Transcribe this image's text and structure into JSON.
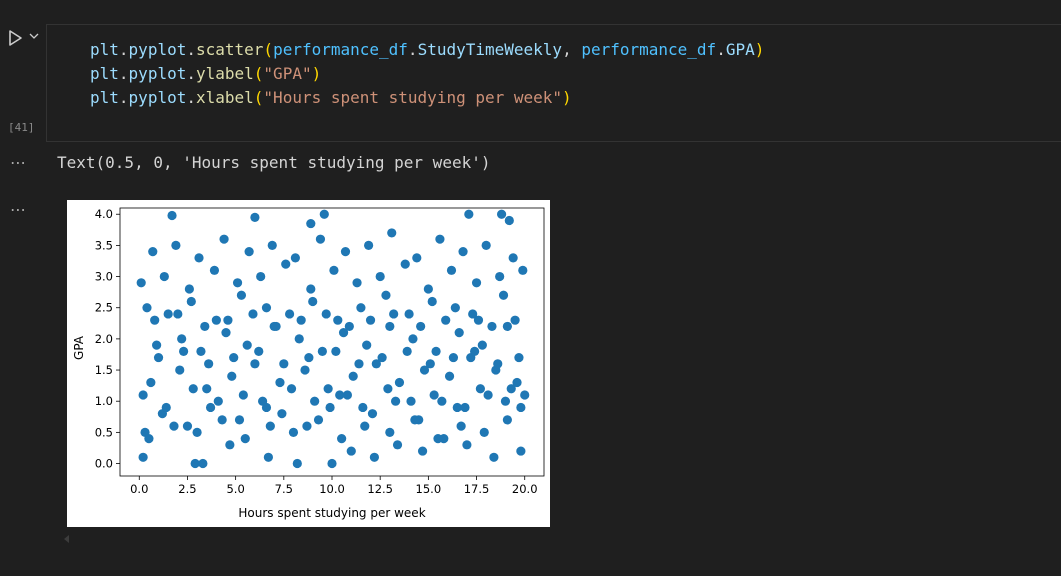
{
  "cell": {
    "execution_count": "[41]",
    "code_lines": [
      [
        {
          "t": "plt",
          "c": "id"
        },
        {
          "t": ".",
          "c": "dot"
        },
        {
          "t": "pyplot",
          "c": "id"
        },
        {
          "t": ".",
          "c": "dot"
        },
        {
          "t": "scatter",
          "c": "fn"
        },
        {
          "t": "(",
          "c": "p1"
        },
        {
          "t": "performance_df",
          "c": "var"
        },
        {
          "t": ".",
          "c": "dot"
        },
        {
          "t": "StudyTimeWeekly",
          "c": "id"
        },
        {
          "t": ", ",
          "c": "dot"
        },
        {
          "t": "performance_df",
          "c": "var"
        },
        {
          "t": ".",
          "c": "dot"
        },
        {
          "t": "GPA",
          "c": "id"
        },
        {
          "t": ")",
          "c": "p1"
        }
      ],
      [
        {
          "t": "plt",
          "c": "id"
        },
        {
          "t": ".",
          "c": "dot"
        },
        {
          "t": "pyplot",
          "c": "id"
        },
        {
          "t": ".",
          "c": "dot"
        },
        {
          "t": "ylabel",
          "c": "fn"
        },
        {
          "t": "(",
          "c": "p1"
        },
        {
          "t": "\"GPA\"",
          "c": "str"
        },
        {
          "t": ")",
          "c": "p1"
        }
      ],
      [
        {
          "t": "plt",
          "c": "id"
        },
        {
          "t": ".",
          "c": "dot"
        },
        {
          "t": "pyplot",
          "c": "id"
        },
        {
          "t": ".",
          "c": "dot"
        },
        {
          "t": "xlabel",
          "c": "fn"
        },
        {
          "t": "(",
          "c": "p1"
        },
        {
          "t": "\"Hours spent studying per week\"",
          "c": "str"
        },
        {
          "t": ")",
          "c": "p1"
        }
      ]
    ]
  },
  "output": {
    "text": "Text(0.5, 0, 'Hours spent studying per week')",
    "dots": "⋯"
  },
  "chart_data": {
    "type": "scatter",
    "xlabel": "Hours spent studying per week",
    "ylabel": "GPA",
    "xlim": [
      -1,
      21
    ],
    "ylim": [
      -0.2,
      4.1
    ],
    "xticks": [
      "0.0",
      "2.5",
      "5.0",
      "7.5",
      "10.0",
      "12.5",
      "15.0",
      "17.5",
      "20.0"
    ],
    "yticks": [
      "0.0",
      "0.5",
      "1.0",
      "1.5",
      "2.0",
      "2.5",
      "3.0",
      "3.5",
      "4.0"
    ],
    "marker_color": "#1f77b4",
    "x": [
      1.7,
      6.0,
      9.6,
      8.9,
      17.1,
      18.8,
      19.2,
      19.8,
      2.9,
      0.2,
      3.3,
      4.7,
      6.7,
      8.2,
      10.0,
      11.0,
      12.2,
      13.4,
      14.7,
      15.8,
      17.0,
      18.4,
      19.8,
      0.3,
      1.2,
      2.5,
      3.7,
      5.2,
      6.4,
      7.4,
      8.7,
      9.9,
      10.8,
      12.1,
      13.3,
      14.5,
      15.7,
      16.9,
      18.1,
      19.3,
      0.6,
      2.1,
      3.5,
      4.8,
      6.0,
      7.3,
      8.6,
      9.8,
      11.1,
      12.3,
      13.5,
      14.8,
      16.1,
      17.2,
      18.5,
      19.6,
      0.9,
      2.2,
      3.2,
      4.5,
      5.6,
      7.0,
      8.3,
      9.5,
      10.6,
      11.8,
      13.0,
      14.2,
      15.4,
      16.6,
      17.8,
      19.1,
      0.4,
      1.5,
      2.7,
      4.0,
      5.3,
      6.6,
      7.8,
      9.0,
      10.3,
      11.5,
      12.8,
      14.0,
      15.2,
      16.4,
      17.6,
      18.9,
      0.1,
      1.3,
      2.6,
      3.9,
      5.1,
      6.3,
      7.6,
      8.9,
      10.1,
      11.3,
      12.5,
      13.8,
      15.0,
      16.2,
      17.5,
      18.7,
      19.9,
      0.7,
      1.9,
      3.1,
      4.4,
      5.7,
      6.9,
      8.1,
      9.4,
      10.7,
      11.9,
      13.1,
      14.4,
      15.6,
      16.8,
      18.0,
      19.4,
      0.5,
      1.8,
      3.0,
      4.3,
      5.5,
      6.8,
      8.0,
      9.3,
      10.5,
      11.7,
      13.0,
      14.3,
      15.5,
      16.7,
      17.9,
      19.1,
      0.2,
      1.4,
      2.8,
      4.1,
      5.4,
      6.6,
      7.9,
      9.1,
      10.4,
      11.6,
      12.9,
      14.1,
      15.3,
      16.5,
      17.7,
      19.0,
      20.0,
      1.0,
      2.3,
      3.6,
      4.9,
      6.2,
      7.5,
      8.8,
      10.2,
      11.4,
      12.6,
      13.9,
      15.1,
      16.3,
      17.4,
      18.6,
      19.7,
      0.8,
      2.0,
      3.4,
      4.6,
      5.9,
      7.1,
      8.4,
      9.7,
      10.9,
      12.0,
      13.2,
      14.6,
      15.9,
      17.3,
      18.3,
      19.5
    ],
    "y": [
      3.98,
      3.95,
      4.0,
      3.85,
      4.0,
      4.0,
      3.9,
      0.2,
      0.0,
      0.1,
      0.0,
      0.3,
      0.1,
      0.0,
      0.0,
      0.2,
      0.1,
      0.3,
      0.2,
      0.4,
      0.3,
      0.1,
      0.9,
      0.5,
      0.8,
      0.6,
      0.9,
      0.7,
      1.0,
      0.8,
      0.6,
      0.9,
      1.1,
      0.8,
      1.0,
      0.7,
      1.0,
      0.9,
      1.1,
      1.2,
      1.3,
      1.5,
      1.2,
      1.4,
      1.6,
      1.3,
      1.5,
      1.2,
      1.4,
      1.6,
      1.3,
      1.5,
      1.4,
      1.7,
      1.5,
      1.3,
      1.9,
      2.0,
      1.8,
      2.1,
      1.9,
      2.2,
      2.0,
      1.8,
      2.1,
      1.9,
      2.2,
      2.0,
      1.8,
      2.1,
      1.9,
      2.2,
      2.5,
      2.4,
      2.6,
      2.3,
      2.7,
      2.5,
      2.4,
      2.6,
      2.3,
      2.5,
      2.7,
      2.4,
      2.6,
      2.5,
      2.3,
      2.7,
      2.9,
      3.0,
      2.8,
      3.1,
      2.9,
      3.0,
      3.2,
      2.8,
      3.1,
      2.9,
      3.0,
      3.2,
      2.8,
      3.1,
      2.9,
      3.0,
      3.1,
      3.4,
      3.5,
      3.3,
      3.6,
      3.4,
      3.5,
      3.3,
      3.6,
      3.4,
      3.5,
      3.7,
      3.3,
      3.6,
      3.4,
      3.5,
      3.3,
      0.4,
      0.6,
      0.5,
      0.7,
      0.4,
      0.6,
      0.5,
      0.7,
      0.4,
      0.6,
      0.5,
      0.7,
      0.4,
      0.6,
      0.5,
      0.7,
      1.1,
      0.9,
      1.2,
      1.0,
      1.1,
      0.9,
      1.2,
      1.0,
      1.1,
      0.9,
      1.2,
      1.0,
      1.1,
      0.9,
      1.2,
      1.0,
      1.1,
      1.7,
      1.8,
      1.6,
      1.7,
      1.8,
      1.6,
      1.7,
      1.8,
      1.6,
      1.7,
      1.8,
      1.6,
      1.7,
      1.8,
      1.6,
      1.7,
      2.3,
      2.4,
      2.2,
      2.3,
      2.4,
      2.2,
      2.3,
      2.4,
      2.2,
      2.3,
      2.4,
      2.2,
      2.3,
      2.4,
      2.2,
      2.3
    ]
  }
}
